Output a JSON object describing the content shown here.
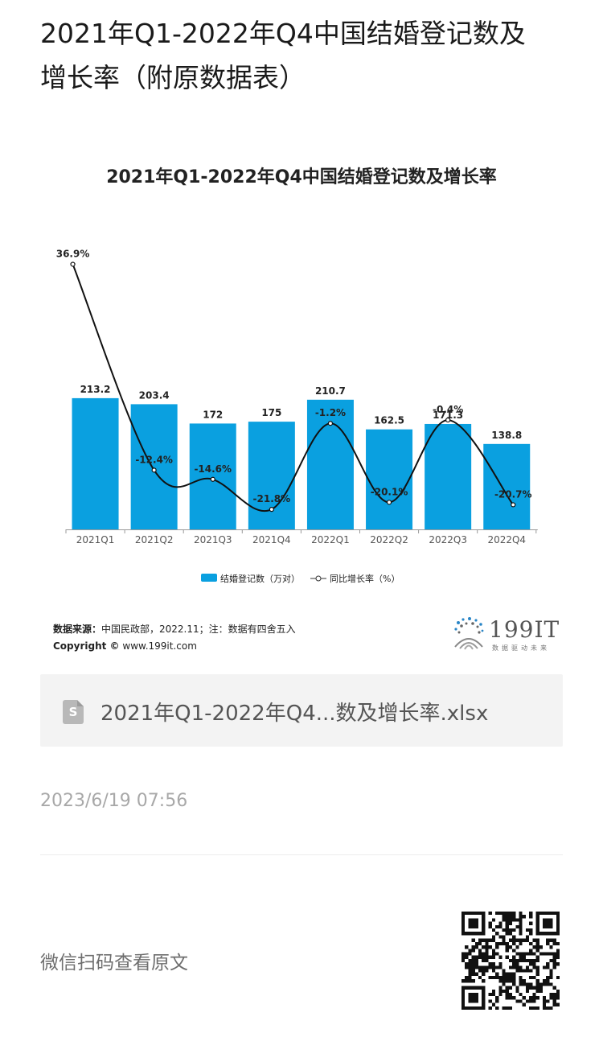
{
  "page": {
    "title_line1": "2021年Q1-2022年Q4中国结婚登记数及",
    "title_line2": "增长率（附原数据表）"
  },
  "chart_data": {
    "type": "bar",
    "title": "2021年Q1-2022年Q4中国结婚登记数及增长率",
    "categories": [
      "2021Q1",
      "2021Q2",
      "2021Q3",
      "2021Q4",
      "2022Q1",
      "2022Q2",
      "2022Q3",
      "2022Q4"
    ],
    "series": [
      {
        "name": "结婚登记数（万对）",
        "type": "bar",
        "values": [
          213.2,
          203.4,
          172,
          175,
          210.7,
          162.5,
          171.3,
          138.8
        ],
        "labels": [
          "213.2",
          "203.4",
          "172",
          "175",
          "210.7",
          "162.5",
          "171.3",
          "138.8"
        ]
      },
      {
        "name": "同比增长率（%）",
        "type": "line",
        "values": [
          36.9,
          -12.4,
          -14.6,
          -21.8,
          -1.2,
          -20.1,
          -0.4,
          -20.7
        ],
        "labels": [
          "36.9%",
          "-12.4%",
          "-14.6%",
          "-21.8%",
          "-1.2%",
          "-20.1%",
          "-0.4%",
          "-20.7%"
        ]
      }
    ],
    "legend": "bottom",
    "colors": {
      "bar": "#0aa0e0",
      "line": "#111111"
    }
  },
  "source": {
    "label": "数据来源：",
    "text": "中国民政部，2022.11；注：数据有四舍五入",
    "copyright_label": "Copyright ©",
    "copyright_text": "www.199it.com"
  },
  "logo": {
    "text": "199IT",
    "sub": "数据驱动未来"
  },
  "attachment": {
    "file_name": "2021年Q1-2022年Q4...数及增长率.xlsx",
    "icon": "spreadsheet-icon",
    "icon_letter": "S"
  },
  "meta": {
    "timestamp": "2023/6/19 07:56"
  },
  "footer": {
    "scan_text": "微信扫码查看原文",
    "qr_icon": "qr-code-icon"
  }
}
